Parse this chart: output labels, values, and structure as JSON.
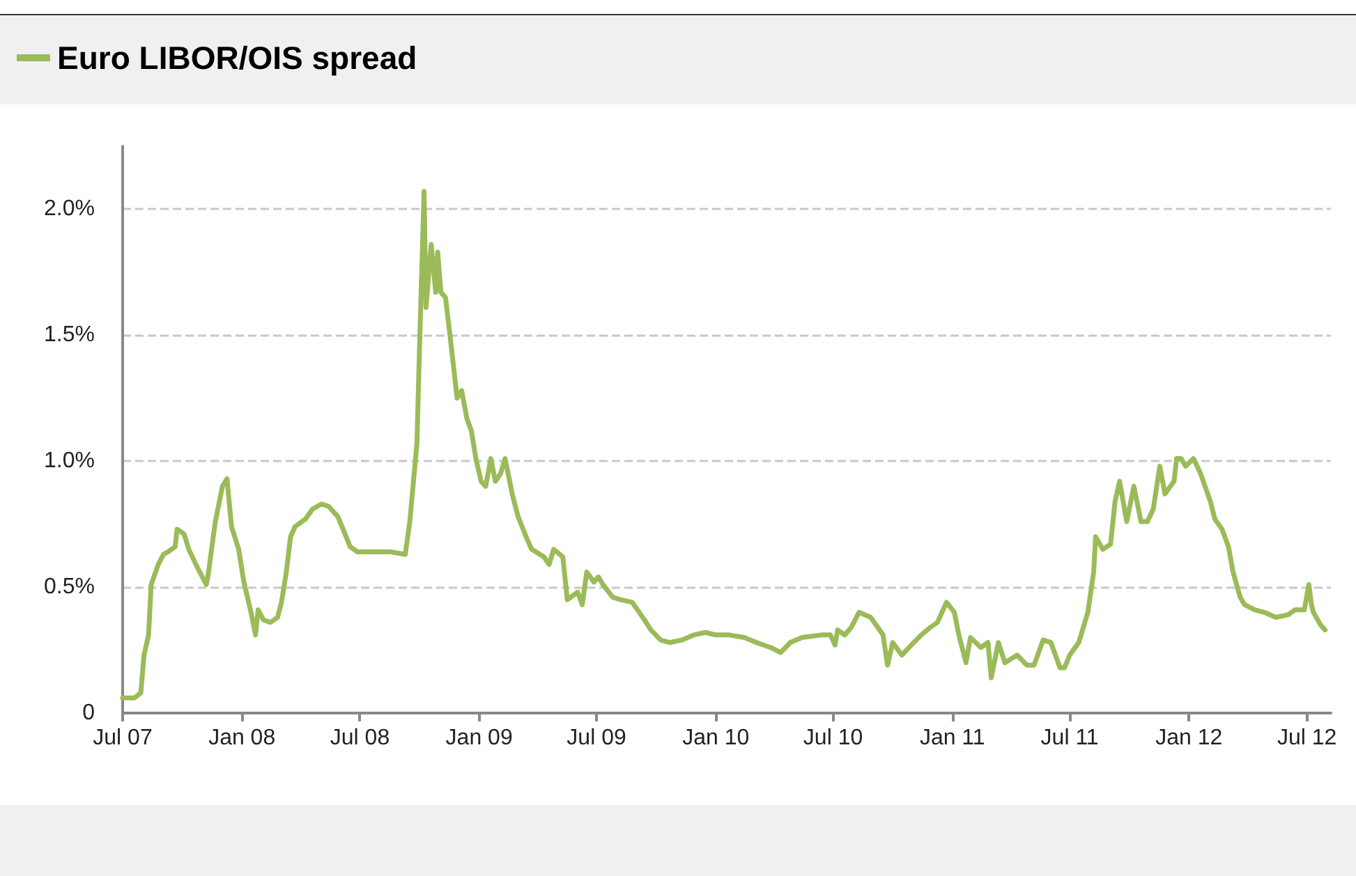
{
  "chart_data": {
    "type": "line",
    "legend": "top left",
    "grid": "y",
    "line_style": "solid",
    "marker": "none",
    "xlim": [
      "2007-07-01",
      "2012-08-07"
    ],
    "xticks": [
      {
        "value": "2007-07-01",
        "label": "Jul 07"
      },
      {
        "value": "2008-01-01",
        "label": "Jan 08"
      },
      {
        "value": "2008-07-01",
        "label": "Jul 08"
      },
      {
        "value": "2009-01-01",
        "label": "Jan 09"
      },
      {
        "value": "2009-07-01",
        "label": "Jul 09"
      },
      {
        "value": "2010-01-01",
        "label": "Jan 10"
      },
      {
        "value": "2010-07-01",
        "label": "Jul 10"
      },
      {
        "value": "2011-01-01",
        "label": "Jan 11"
      },
      {
        "value": "2011-07-01",
        "label": "Jul 11"
      },
      {
        "value": "2012-01-01",
        "label": "Jan 12"
      },
      {
        "value": "2012-07-01",
        "label": "Jul 12"
      }
    ],
    "ylim": [
      0,
      2.25
    ],
    "yticks": [
      {
        "value": 0,
        "label": "0"
      },
      {
        "value": 0.5,
        "label": "0.5%"
      },
      {
        "value": 1,
        "label": "1.0%"
      },
      {
        "value": 1.5,
        "label": "1.5%"
      },
      {
        "value": 2,
        "label": "2.0%"
      }
    ],
    "series": [
      {
        "name": "Euro LIBOR/OIS spread",
        "color": "#9bbb59",
        "x": [
          "2007-07-01",
          "2007-07-19",
          "2007-07-29",
          "2007-08-03",
          "2007-08-10",
          "2007-08-14",
          "2007-08-25",
          "2007-09-02",
          "2007-09-09",
          "2007-09-20",
          "2007-09-23",
          "2007-10-04",
          "2007-10-11",
          "2007-10-22",
          "2007-11-07",
          "2007-11-10",
          "2007-11-21",
          "2007-12-02",
          "2007-12-09",
          "2007-12-16",
          "2007-12-27",
          "2008-01-04",
          "2008-01-15",
          "2008-01-22",
          "2008-01-26",
          "2008-02-03",
          "2008-02-14",
          "2008-02-25",
          "2008-03-02",
          "2008-03-09",
          "2008-03-16",
          "2008-03-23",
          "2008-04-08",
          "2008-04-19",
          "2008-05-03",
          "2008-05-14",
          "2008-05-28",
          "2008-06-05",
          "2008-06-16",
          "2008-06-27",
          "2008-07-11",
          "2008-07-26",
          "2008-08-17",
          "2008-09-09",
          "2008-09-16",
          "2008-09-27",
          "2008-10-01",
          "2008-10-08",
          "2008-10-11",
          "2008-10-19",
          "2008-10-22",
          "2008-10-26",
          "2008-10-29",
          "2008-11-03",
          "2008-11-10",
          "2008-11-17",
          "2008-11-28",
          "2008-12-05",
          "2008-12-13",
          "2008-12-20",
          "2008-12-27",
          "2009-01-04",
          "2009-01-11",
          "2009-01-19",
          "2009-01-26",
          "2009-02-03",
          "2009-02-10",
          "2009-02-21",
          "2009-03-02",
          "2009-03-16",
          "2009-03-23",
          "2009-04-11",
          "2009-04-19",
          "2009-04-26",
          "2009-05-10",
          "2009-05-17",
          "2009-06-02",
          "2009-06-09",
          "2009-06-16",
          "2009-06-27",
          "2009-07-04",
          "2009-07-11",
          "2009-07-26",
          "2009-08-07",
          "2009-08-25",
          "2009-09-13",
          "2009-09-23",
          "2009-10-08",
          "2009-10-22",
          "2009-11-10",
          "2009-11-28",
          "2009-12-16",
          "2010-01-01",
          "2010-01-22",
          "2010-02-14",
          "2010-03-05",
          "2010-03-27",
          "2010-04-11",
          "2010-04-26",
          "2010-05-14",
          "2010-06-13",
          "2010-06-27",
          "2010-07-04",
          "2010-07-08",
          "2010-07-19",
          "2010-07-29",
          "2010-08-10",
          "2010-08-28",
          "2010-09-16",
          "2010-09-23",
          "2010-10-01",
          "2010-10-15",
          "2010-10-26",
          "2010-11-14",
          "2010-11-28",
          "2010-12-09",
          "2010-12-23",
          "2011-01-04",
          "2011-01-11",
          "2011-01-22",
          "2011-01-29",
          "2011-02-14",
          "2011-02-25",
          "2011-03-02",
          "2011-03-13",
          "2011-03-23",
          "2011-04-11",
          "2011-04-26",
          "2011-05-07",
          "2011-05-21",
          "2011-06-02",
          "2011-06-16",
          "2011-06-23",
          "2011-07-01",
          "2011-07-15",
          "2011-07-22",
          "2011-07-29",
          "2011-08-07",
          "2011-08-10",
          "2011-08-21",
          "2011-09-02",
          "2011-09-09",
          "2011-09-16",
          "2011-09-27",
          "2011-10-08",
          "2011-10-19",
          "2011-10-29",
          "2011-11-07",
          "2011-11-17",
          "2011-11-25",
          "2011-12-09",
          "2011-12-13",
          "2011-12-20",
          "2011-12-27",
          "2012-01-08",
          "2012-01-19",
          "2012-02-03",
          "2012-02-10",
          "2012-02-21",
          "2012-03-02",
          "2012-03-09",
          "2012-03-20",
          "2012-03-27",
          "2012-04-11",
          "2012-04-26",
          "2012-05-14",
          "2012-06-02",
          "2012-06-13",
          "2012-06-27",
          "2012-07-04",
          "2012-07-08",
          "2012-07-11",
          "2012-07-22",
          "2012-07-29"
        ],
        "values": [
          0.06,
          0.06,
          0.08,
          0.23,
          0.31,
          0.51,
          0.59,
          0.63,
          0.64,
          0.66,
          0.73,
          0.71,
          0.65,
          0.59,
          0.51,
          0.55,
          0.76,
          0.9,
          0.93,
          0.74,
          0.65,
          0.52,
          0.4,
          0.31,
          0.41,
          0.37,
          0.36,
          0.38,
          0.44,
          0.55,
          0.7,
          0.74,
          0.77,
          0.81,
          0.83,
          0.82,
          0.78,
          0.73,
          0.66,
          0.64,
          0.64,
          0.64,
          0.64,
          0.63,
          0.76,
          1.07,
          1.45,
          2.07,
          1.61,
          1.86,
          1.78,
          1.67,
          1.83,
          1.67,
          1.65,
          1.5,
          1.25,
          1.28,
          1.17,
          1.12,
          1.01,
          0.92,
          0.9,
          1.01,
          0.92,
          0.95,
          1.01,
          0.87,
          0.78,
          0.69,
          0.65,
          0.62,
          0.59,
          0.65,
          0.62,
          0.45,
          0.48,
          0.43,
          0.56,
          0.52,
          0.54,
          0.51,
          0.46,
          0.45,
          0.44,
          0.37,
          0.33,
          0.29,
          0.28,
          0.29,
          0.31,
          0.32,
          0.31,
          0.31,
          0.3,
          0.28,
          0.26,
          0.24,
          0.28,
          0.3,
          0.31,
          0.31,
          0.27,
          0.33,
          0.31,
          0.34,
          0.4,
          0.38,
          0.31,
          0.19,
          0.28,
          0.23,
          0.26,
          0.31,
          0.34,
          0.36,
          0.44,
          0.4,
          0.31,
          0.2,
          0.3,
          0.26,
          0.28,
          0.14,
          0.28,
          0.2,
          0.23,
          0.19,
          0.19,
          0.29,
          0.28,
          0.18,
          0.18,
          0.23,
          0.28,
          0.34,
          0.4,
          0.56,
          0.7,
          0.65,
          0.67,
          0.84,
          0.92,
          0.76,
          0.9,
          0.76,
          0.76,
          0.81,
          0.98,
          0.87,
          0.92,
          1.01,
          1.01,
          0.98,
          1.01,
          0.95,
          0.84,
          0.77,
          0.73,
          0.66,
          0.56,
          0.46,
          0.43,
          0.41,
          0.4,
          0.38,
          0.39,
          0.41,
          0.41,
          0.51,
          0.43,
          0.4,
          0.35,
          0.33
        ]
      }
    ]
  }
}
